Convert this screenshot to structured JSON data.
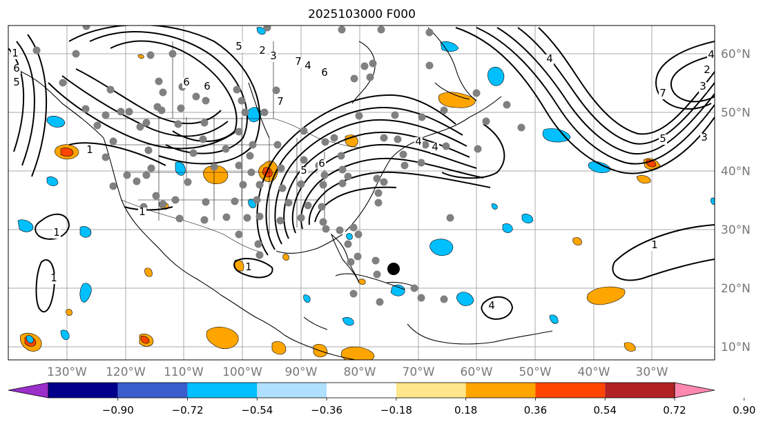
{
  "title": "2025103000 F000",
  "lon_labels": [
    "130°W",
    "120°W",
    "110°W",
    "100°W",
    "90°W",
    "80°W",
    "70°W",
    "60°W",
    "50°W",
    "40°W",
    "30°W"
  ],
  "lat_labels": [
    "60°N",
    "50°N",
    "40°N",
    "30°N",
    "20°N",
    "10°N"
  ],
  "contour_labels": [
    "1",
    "1",
    "1",
    "1",
    "1",
    "1",
    "1",
    "4",
    "5",
    "6",
    "7",
    "7",
    "6",
    "5",
    "6",
    "4",
    "6",
    "3",
    "2",
    "4",
    "4",
    "5",
    "6",
    "3",
    "2",
    "4",
    "5",
    "7",
    "3",
    "4"
  ],
  "colorbar": {
    "tick_labels": [
      "−0.90",
      "−0.72",
      "−0.54",
      "−0.36",
      "−0.18",
      "0.18",
      "0.36",
      "0.54",
      "0.72",
      "0.90"
    ],
    "colors": [
      "#9a2fc9",
      "#00008b",
      "#3a5fcd",
      "#00bfff",
      "#b0e0ff",
      "#ffffff",
      "#ffe68a",
      "#ffa500",
      "#ff4500",
      "#b22222",
      "#ff88b0"
    ]
  },
  "colors": {
    "positive_fill": "#ffa500",
    "positive_strong": "#ff4500",
    "negative_fill": "#00bfff",
    "station_dot": "#808080",
    "grid": "#aaaaaa",
    "contour": "#000000"
  }
}
